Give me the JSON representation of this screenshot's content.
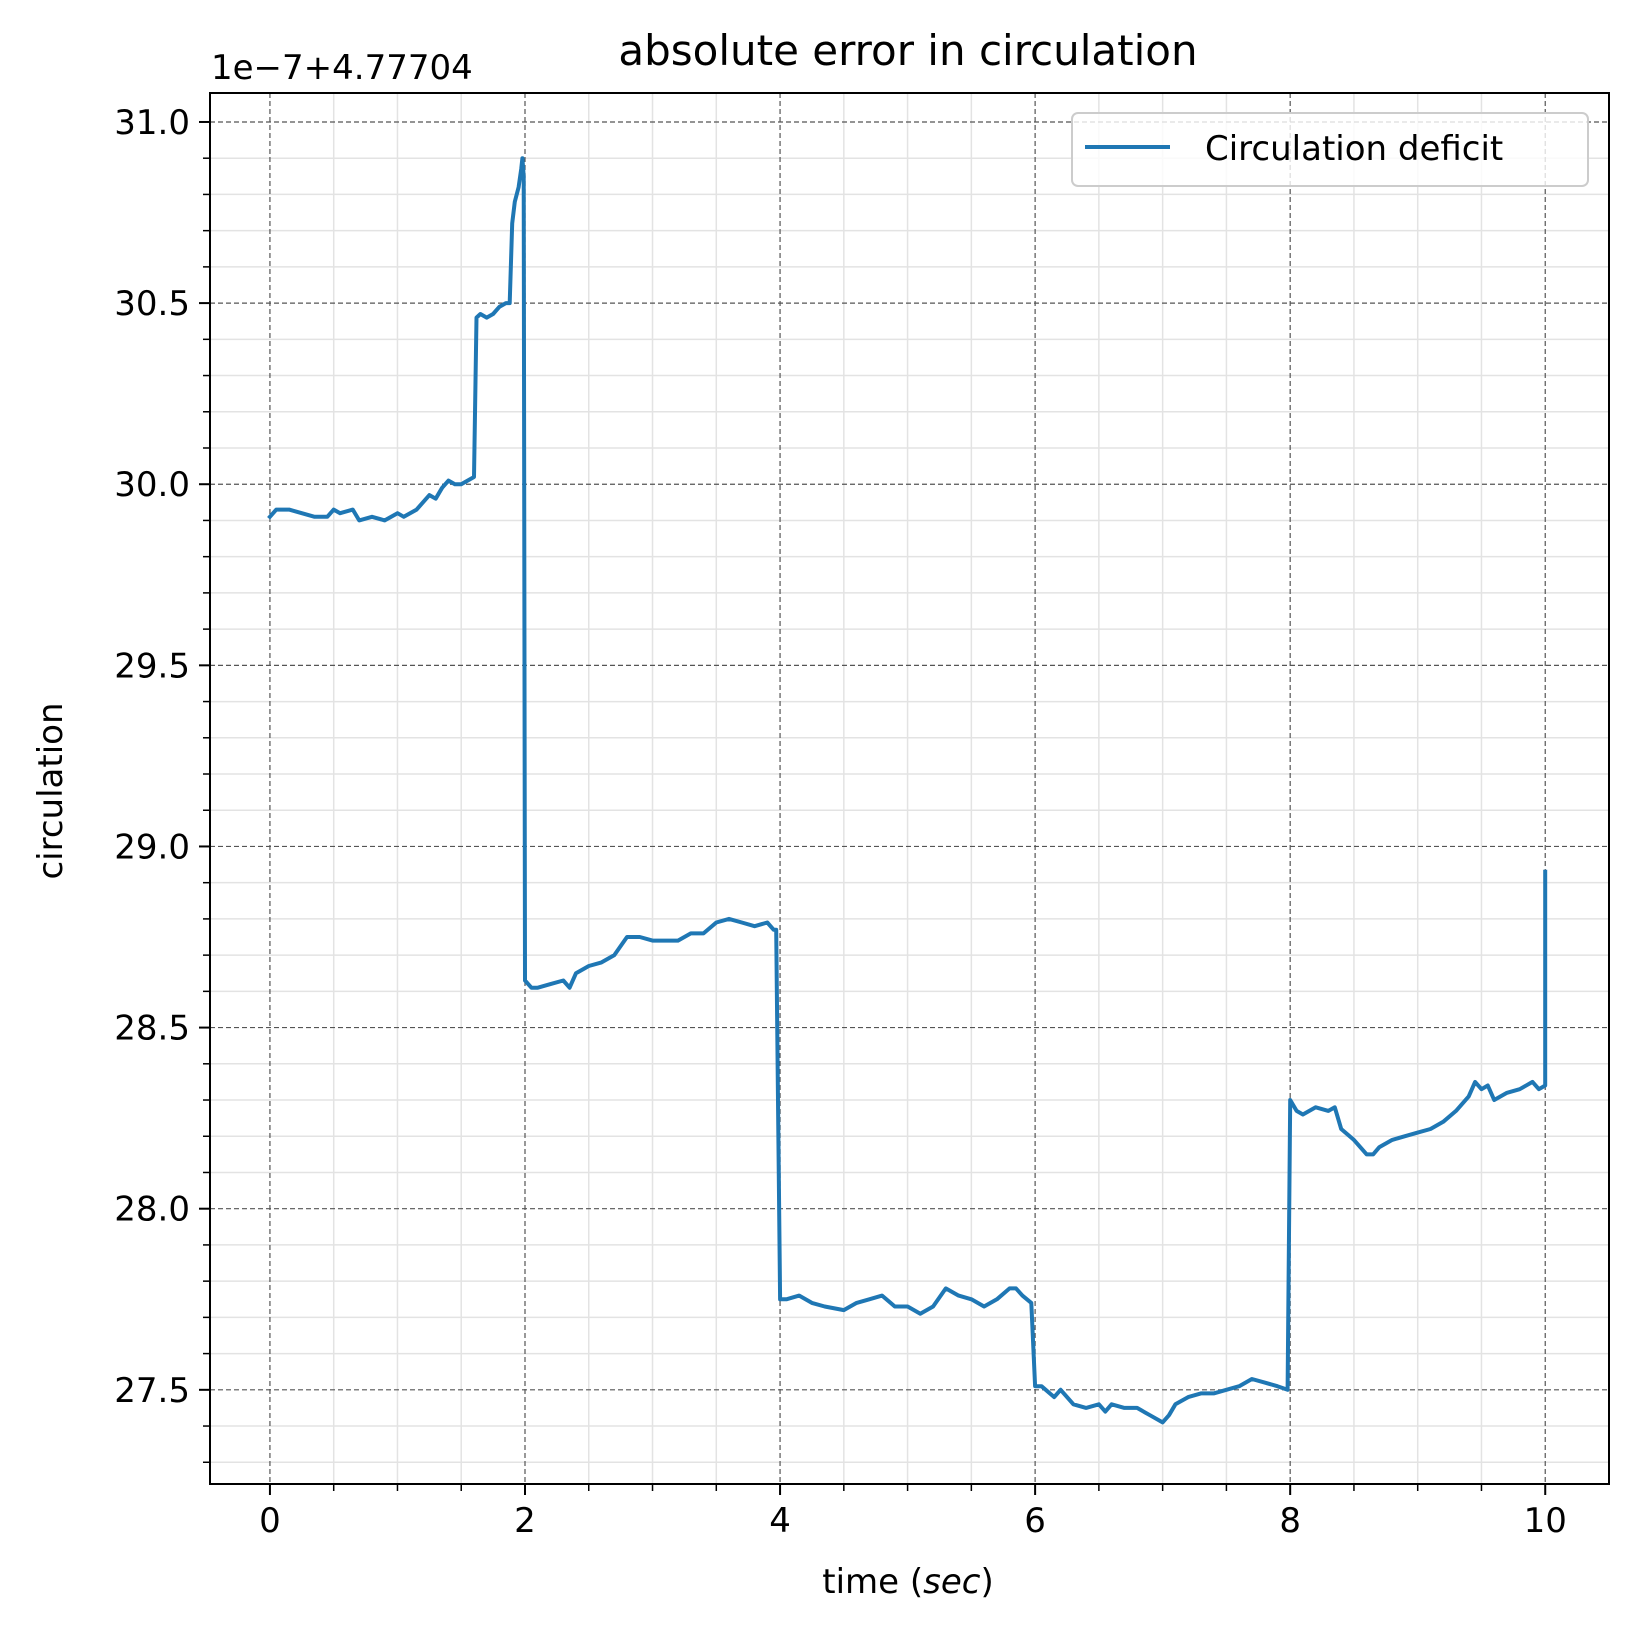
{
  "chart_data": {
    "type": "line",
    "title": "absolute error in circulation",
    "xlabel": "time (",
    "xlabel_unit": "sec",
    "xlabel_close": ")",
    "ylabel": "circulation",
    "offset_label": "1e−7+4.77704",
    "xlim": [
      -0.47,
      10.5
    ],
    "ylim": [
      27.24,
      31.08
    ],
    "x_ticks": [
      0,
      2,
      4,
      6,
      8,
      10
    ],
    "x_tick_labels": [
      "0",
      "2",
      "4",
      "6",
      "8",
      "10"
    ],
    "y_ticks": [
      27.5,
      28.0,
      28.5,
      29.0,
      29.5,
      30.0,
      30.5,
      31.0
    ],
    "y_tick_labels": [
      "27.5",
      "28.0",
      "28.5",
      "29.0",
      "29.5",
      "30.0",
      "30.5",
      "31.0"
    ],
    "grid": true,
    "legend_position": "top-right",
    "colors": {
      "line": "#1f77b4"
    },
    "series": [
      {
        "name": "Circulation deficit",
        "x": [
          0,
          0.05,
          0.15,
          0.25,
          0.35,
          0.45,
          0.5,
          0.55,
          0.65,
          0.7,
          0.8,
          0.9,
          1.0,
          1.05,
          1.15,
          1.2,
          1.25,
          1.3,
          1.35,
          1.4,
          1.45,
          1.5,
          1.55,
          1.6,
          1.62,
          1.65,
          1.7,
          1.75,
          1.8,
          1.85,
          1.88,
          1.9,
          1.92,
          1.95,
          1.97,
          1.98,
          1.99,
          2.0,
          2.05,
          2.1,
          2.2,
          2.3,
          2.35,
          2.4,
          2.5,
          2.6,
          2.7,
          2.8,
          2.9,
          3.0,
          3.1,
          3.2,
          3.3,
          3.4,
          3.5,
          3.6,
          3.7,
          3.8,
          3.9,
          3.95,
          3.97,
          4.0,
          4.05,
          4.15,
          4.25,
          4.35,
          4.5,
          4.6,
          4.7,
          4.8,
          4.9,
          5.0,
          5.1,
          5.2,
          5.3,
          5.4,
          5.5,
          5.6,
          5.7,
          5.8,
          5.85,
          5.9,
          5.97,
          6.0,
          6.05,
          6.15,
          6.2,
          6.3,
          6.4,
          6.5,
          6.55,
          6.6,
          6.7,
          6.8,
          6.9,
          7.0,
          7.05,
          7.1,
          7.2,
          7.3,
          7.4,
          7.5,
          7.6,
          7.7,
          7.8,
          7.9,
          7.98,
          8.0,
          8.05,
          8.1,
          8.2,
          8.3,
          8.35,
          8.4,
          8.5,
          8.6,
          8.65,
          8.7,
          8.8,
          8.9,
          9.0,
          9.1,
          9.2,
          9.3,
          9.4,
          9.45,
          9.5,
          9.55,
          9.6,
          9.7,
          9.8,
          9.9,
          9.95,
          10.0,
          10.0
        ],
        "y": [
          29.91,
          29.93,
          29.93,
          29.92,
          29.91,
          29.91,
          29.93,
          29.92,
          29.93,
          29.9,
          29.91,
          29.9,
          29.92,
          29.91,
          29.93,
          29.95,
          29.97,
          29.96,
          29.99,
          30.01,
          30.0,
          30.0,
          30.01,
          30.02,
          30.46,
          30.47,
          30.46,
          30.47,
          30.49,
          30.5,
          30.5,
          30.72,
          30.78,
          30.82,
          30.87,
          30.9,
          30.85,
          28.63,
          28.61,
          28.61,
          28.62,
          28.63,
          28.61,
          28.65,
          28.67,
          28.68,
          28.7,
          28.75,
          28.75,
          28.74,
          28.74,
          28.74,
          28.76,
          28.76,
          28.79,
          28.8,
          28.79,
          28.78,
          28.79,
          28.77,
          28.77,
          27.75,
          27.75,
          27.76,
          27.74,
          27.73,
          27.72,
          27.74,
          27.75,
          27.76,
          27.73,
          27.73,
          27.71,
          27.73,
          27.78,
          27.76,
          27.75,
          27.73,
          27.75,
          27.78,
          27.78,
          27.76,
          27.74,
          27.51,
          27.51,
          27.48,
          27.5,
          27.46,
          27.45,
          27.46,
          27.44,
          27.46,
          27.45,
          27.45,
          27.43,
          27.41,
          27.43,
          27.46,
          27.48,
          27.49,
          27.49,
          27.5,
          27.51,
          27.53,
          27.52,
          27.51,
          27.5,
          28.3,
          28.27,
          28.26,
          28.28,
          28.27,
          28.28,
          28.22,
          28.19,
          28.15,
          28.15,
          28.17,
          28.19,
          28.2,
          28.21,
          28.22,
          28.24,
          28.27,
          28.31,
          28.35,
          28.33,
          28.34,
          28.3,
          28.32,
          28.33,
          28.35,
          28.33,
          28.34,
          28.93
        ]
      }
    ]
  }
}
